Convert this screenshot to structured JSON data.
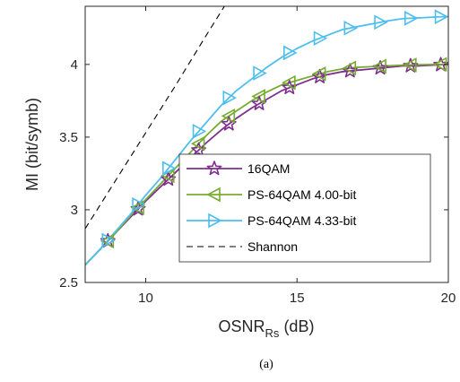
{
  "chart_data": {
    "type": "line",
    "title": "",
    "xlabel_main": "OSNR",
    "xlabel_sub": "Rs",
    "xlabel_unit": " (dB)",
    "ylabel": "MI (bit/symb)",
    "xlim": [
      8,
      20
    ],
    "ylim": [
      2.5,
      4.4
    ],
    "xticks": [
      10,
      15,
      20
    ],
    "yticks": [
      2.5,
      3,
      3.5,
      4
    ],
    "xtick_labels": [
      "10",
      "15",
      "20"
    ],
    "ytick_labels": [
      "2.5",
      "3",
      "3.5",
      "4"
    ],
    "grid": false,
    "legend_position": "inside-lower-right",
    "series": [
      {
        "name": "16QAM",
        "color": "#7E2F8E",
        "marker": "star",
        "x": [
          8,
          8.5,
          9,
          9.5,
          10,
          10.5,
          11,
          11.5,
          12,
          12.5,
          13,
          13.5,
          14,
          14.5,
          15,
          15.5,
          16,
          16.5,
          17,
          17.5,
          18,
          18.5,
          19,
          19.5,
          20
        ],
        "y": [
          2.62,
          2.73,
          2.84,
          2.95,
          3.06,
          3.16,
          3.26,
          3.36,
          3.46,
          3.55,
          3.63,
          3.7,
          3.76,
          3.82,
          3.86,
          3.9,
          3.93,
          3.95,
          3.96,
          3.97,
          3.98,
          3.99,
          3.99,
          3.995,
          4.0
        ],
        "marker_x": [
          8.75,
          9.75,
          10.75,
          11.75,
          12.75,
          13.75,
          14.75,
          15.75,
          16.75,
          17.75,
          18.75,
          19.75
        ]
      },
      {
        "name": "PS-64QAM 4.00-bit",
        "color": "#77AC30",
        "marker": "triangle-left",
        "x": [
          8,
          8.5,
          9,
          9.5,
          10,
          10.5,
          11,
          11.5,
          12,
          12.5,
          13,
          13.5,
          14,
          14.5,
          15,
          15.5,
          16,
          16.5,
          17,
          17.5,
          18,
          18.5,
          19,
          19.5,
          20
        ],
        "y": [
          2.62,
          2.73,
          2.84,
          2.96,
          3.07,
          3.18,
          3.29,
          3.4,
          3.51,
          3.61,
          3.68,
          3.75,
          3.81,
          3.86,
          3.89,
          3.92,
          3.95,
          3.97,
          3.98,
          3.985,
          3.99,
          3.995,
          3.998,
          4.0,
          4.0
        ],
        "marker_x": [
          8.75,
          9.75,
          10.75,
          11.75,
          12.75,
          13.75,
          14.75,
          15.75,
          16.75,
          17.75,
          18.75,
          19.75
        ]
      },
      {
        "name": "PS-64QAM 4.33-bit",
        "color": "#4DBEEE",
        "marker": "triangle-right",
        "x": [
          8,
          8.5,
          9,
          9.5,
          10,
          10.5,
          11,
          11.5,
          12,
          12.5,
          13,
          13.5,
          14,
          14.5,
          15,
          15.5,
          16,
          16.5,
          17,
          17.5,
          18,
          18.5,
          19,
          19.5,
          20
        ],
        "y": [
          2.62,
          2.73,
          2.85,
          2.97,
          3.1,
          3.22,
          3.35,
          3.48,
          3.6,
          3.72,
          3.82,
          3.9,
          3.98,
          4.05,
          4.11,
          4.16,
          4.2,
          4.24,
          4.26,
          4.28,
          4.3,
          4.315,
          4.32,
          4.325,
          4.33
        ],
        "marker_x": [
          8.75,
          9.75,
          10.75,
          11.75,
          12.75,
          13.75,
          14.75,
          15.75,
          16.75,
          17.75,
          18.75,
          19.75
        ]
      },
      {
        "name": "Shannon",
        "color": "#000000",
        "marker": "none",
        "dashed": true,
        "x": [
          8,
          9,
          10,
          11,
          12,
          12.9
        ],
        "y": [
          2.87,
          3.2,
          3.53,
          3.86,
          4.2,
          4.5
        ]
      }
    ]
  },
  "caption": "(a)"
}
